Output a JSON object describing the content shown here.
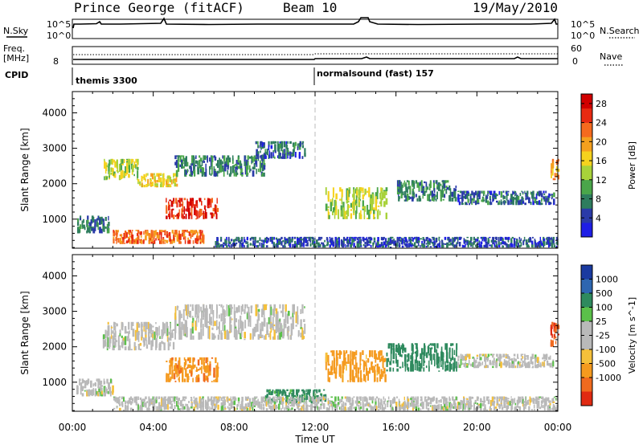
{
  "header": {
    "station": "Prince George (fitACF)",
    "beam": "Beam 10",
    "date": "19/May/2010"
  },
  "strip_labels": {
    "nsky": "N.Sky",
    "nsky_ticks": [
      "10^5",
      "10^0"
    ],
    "nsearch": "N.Search",
    "nsearch_ticks": [
      "10^5",
      "10^0"
    ],
    "freq_line1": "Freq.",
    "freq_line2": "[MHz]",
    "freq_ticks": [
      "8"
    ],
    "nave": "Nave",
    "nave_ticks": [
      "60",
      "0"
    ],
    "cpid": "CPID"
  },
  "modes": [
    {
      "label": "themis 3300"
    },
    {
      "label": "normalsound (fast) 157"
    }
  ],
  "colors": {
    "power_scale": [
      "#1e1ee6",
      "#2a3aa8",
      "#2e7d5e",
      "#4aa64a",
      "#a8d23a",
      "#f5d21e",
      "#f5a01e",
      "#f56a1e",
      "#e82a12",
      "#d10000"
    ],
    "velocity_scale": [
      "#1a3aa0",
      "#2e66b0",
      "#2e8a5e",
      "#5bc04a",
      "#b9b9b9",
      "#b9b9b9",
      "#f5c03a",
      "#f59a1e",
      "#f06a1e",
      "#e02a12"
    ]
  },
  "chart_data": [
    {
      "type": "heatmap",
      "title": "Power",
      "xlabel": "Time UT",
      "ylabel": "Slant Range [km]",
      "x_ticks": [
        "00:00",
        "04:00",
        "08:00",
        "12:00",
        "16:00",
        "20:00",
        "00:00"
      ],
      "y_ticks": [
        "1000",
        "2000",
        "3000",
        "4000"
      ],
      "xlim": [
        0,
        24
      ],
      "ylim": [
        180,
        4600
      ],
      "colorbar": {
        "label": "Power [dB]",
        "ticks": [
          "4",
          "8",
          "12",
          "16",
          "20",
          "24",
          "28"
        ],
        "range": [
          0,
          30
        ]
      },
      "regions": [
        {
          "t": [
            0.2,
            1.8
          ],
          "r": [
            600,
            1100
          ],
          "value": 7
        },
        {
          "t": [
            1.5,
            3.2
          ],
          "r": [
            2100,
            2700
          ],
          "value": 14
        },
        {
          "t": [
            3.2,
            5.2
          ],
          "r": [
            1900,
            2300
          ],
          "value": 16
        },
        {
          "t": [
            4.6,
            7.2
          ],
          "r": [
            1000,
            1600
          ],
          "value": 26
        },
        {
          "t": [
            2.0,
            6.5
          ],
          "r": [
            300,
            700
          ],
          "value": 22
        },
        {
          "t": [
            5.0,
            9.5
          ],
          "r": [
            2200,
            2800
          ],
          "value": 8
        },
        {
          "t": [
            9.0,
            11.5
          ],
          "r": [
            2700,
            3200
          ],
          "value": 6
        },
        {
          "t": [
            12.5,
            15.5
          ],
          "r": [
            1000,
            1900
          ],
          "value": 14
        },
        {
          "t": [
            16.0,
            19.0
          ],
          "r": [
            1500,
            2100
          ],
          "value": 8
        },
        {
          "t": [
            19.0,
            23.8
          ],
          "r": [
            1400,
            1800
          ],
          "value": 6
        },
        {
          "t": [
            23.6,
            24.0
          ],
          "r": [
            2100,
            2700
          ],
          "value": 20
        },
        {
          "t": [
            7.0,
            24.0
          ],
          "r": [
            200,
            500
          ],
          "value": 5
        }
      ]
    },
    {
      "type": "heatmap",
      "title": "Velocity",
      "xlabel": "Time UT",
      "ylabel": "Slant Range [km]",
      "x_ticks": [
        "00:00",
        "04:00",
        "08:00",
        "12:00",
        "16:00",
        "20:00",
        "00:00"
      ],
      "y_ticks": [
        "1000",
        "2000",
        "3000",
        "4000"
      ],
      "xlim": [
        0,
        24
      ],
      "ylim": [
        180,
        4600
      ],
      "colorbar": {
        "label": "Velocity [m s^-1]",
        "ticks": [
          "1000",
          "500",
          "100",
          "25",
          "-25",
          "-100",
          "-500",
          "-1000"
        ]
      },
      "regions": [
        {
          "t": [
            0.2,
            2.0
          ],
          "r": [
            600,
            1100
          ],
          "value": 0
        },
        {
          "t": [
            1.5,
            5.0
          ],
          "r": [
            1900,
            2700
          ],
          "value": 0
        },
        {
          "t": [
            4.6,
            7.2
          ],
          "r": [
            1000,
            1700
          ],
          "value": -400
        },
        {
          "t": [
            5.0,
            11.5
          ],
          "r": [
            2200,
            3200
          ],
          "value": 0
        },
        {
          "t": [
            9.5,
            12.5
          ],
          "r": [
            400,
            800
          ],
          "value": 150
        },
        {
          "t": [
            12.5,
            15.5
          ],
          "r": [
            1000,
            1900
          ],
          "value": -150
        },
        {
          "t": [
            15.5,
            19.0
          ],
          "r": [
            1300,
            2100
          ],
          "value": 200
        },
        {
          "t": [
            19.0,
            23.8
          ],
          "r": [
            1400,
            1800
          ],
          "value": 0
        },
        {
          "t": [
            23.6,
            24.0
          ],
          "r": [
            2000,
            2700
          ],
          "value": -1000
        },
        {
          "t": [
            2.0,
            24.0
          ],
          "r": [
            200,
            600
          ],
          "value": 0
        }
      ]
    }
  ]
}
